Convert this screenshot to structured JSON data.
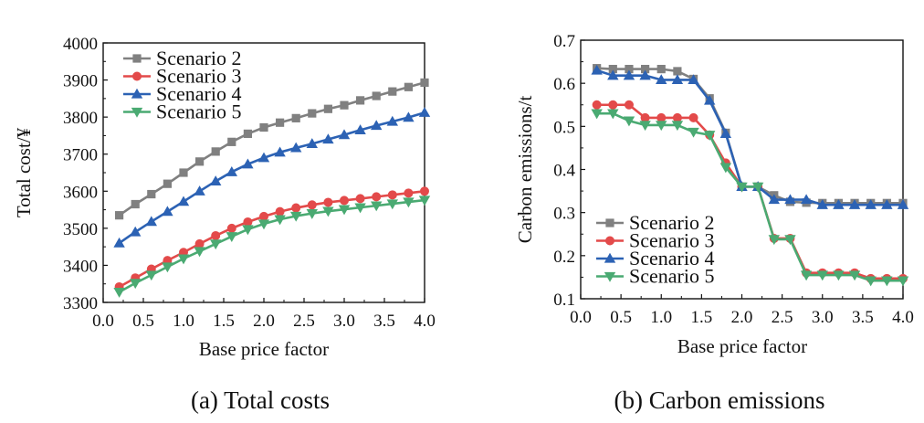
{
  "chart_data": [
    {
      "type": "line",
      "caption": "(a) Total costs",
      "xlabel": "Base price factor",
      "ylabel": "Total cost/¥",
      "xlim": [
        0.0,
        4.0
      ],
      "ylim": [
        3300,
        4000
      ],
      "x_ticks": [
        "0.0",
        "0.5",
        "1.0",
        "1.5",
        "2.0",
        "2.5",
        "3.0",
        "3.5",
        "4.0"
      ],
      "y_ticks": [
        "3300",
        "3400",
        "3500",
        "3600",
        "3700",
        "3800",
        "3900",
        "4000"
      ],
      "legend_position": "top-left",
      "x": [
        0.2,
        0.4,
        0.6,
        0.8,
        1.0,
        1.2,
        1.4,
        1.6,
        1.8,
        2.0,
        2.2,
        2.4,
        2.6,
        2.8,
        3.0,
        3.2,
        3.4,
        3.6,
        3.8,
        4.0
      ],
      "series": [
        {
          "name": "Scenario 2",
          "color": "#808080",
          "marker": "square",
          "values": [
            3535,
            3565,
            3592,
            3620,
            3650,
            3680,
            3707,
            3733,
            3755,
            3772,
            3785,
            3797,
            3810,
            3822,
            3832,
            3845,
            3857,
            3869,
            3881,
            3893
          ]
        },
        {
          "name": "Scenario 3",
          "color": "#e34a4a",
          "marker": "circle",
          "values": [
            3342,
            3366,
            3390,
            3413,
            3435,
            3458,
            3480,
            3500,
            3517,
            3532,
            3545,
            3555,
            3563,
            3570,
            3575,
            3580,
            3585,
            3590,
            3595,
            3600
          ]
        },
        {
          "name": "Scenario 4",
          "color": "#2c62b4",
          "marker": "triangle-up",
          "values": [
            3460,
            3490,
            3518,
            3545,
            3572,
            3600,
            3627,
            3652,
            3673,
            3690,
            3705,
            3717,
            3728,
            3740,
            3752,
            3765,
            3777,
            3788,
            3799,
            3812
          ]
        },
        {
          "name": "Scenario 5",
          "color": "#4aaa72",
          "marker": "triangle-down",
          "values": [
            3328,
            3352,
            3374,
            3396,
            3418,
            3438,
            3458,
            3478,
            3497,
            3512,
            3524,
            3533,
            3540,
            3546,
            3551,
            3556,
            3561,
            3566,
            3571,
            3576
          ]
        }
      ]
    },
    {
      "type": "line",
      "caption": "(b) Carbon emissions",
      "xlabel": "Base price factor",
      "ylabel": "Carbon emissions/t",
      "xlim": [
        0.0,
        4.0
      ],
      "ylim": [
        0.1,
        0.7
      ],
      "x_ticks": [
        "0.0",
        "0.5",
        "1.0",
        "1.5",
        "2.0",
        "2.5",
        "3.0",
        "3.5",
        "4.0"
      ],
      "y_ticks": [
        "0.1",
        "0.2",
        "0.3",
        "0.4",
        "0.5",
        "0.6",
        "0.7"
      ],
      "legend_position": "bottom-left",
      "x": [
        0.2,
        0.4,
        0.6,
        0.8,
        1.0,
        1.2,
        1.4,
        1.6,
        1.8,
        2.0,
        2.2,
        2.4,
        2.6,
        2.8,
        3.0,
        3.2,
        3.4,
        3.6,
        3.8,
        4.0
      ],
      "series": [
        {
          "name": "Scenario 2",
          "color": "#808080",
          "marker": "square",
          "values": [
            0.635,
            0.633,
            0.633,
            0.633,
            0.633,
            0.628,
            0.61,
            0.565,
            0.485,
            0.36,
            0.36,
            0.34,
            0.325,
            0.323,
            0.322,
            0.322,
            0.322,
            0.322,
            0.322,
            0.322
          ]
        },
        {
          "name": "Scenario 3",
          "color": "#e34a4a",
          "marker": "circle",
          "values": [
            0.55,
            0.55,
            0.55,
            0.52,
            0.52,
            0.52,
            0.52,
            0.48,
            0.415,
            0.36,
            0.36,
            0.24,
            0.24,
            0.16,
            0.16,
            0.16,
            0.16,
            0.147,
            0.147,
            0.147
          ]
        },
        {
          "name": "Scenario 4",
          "color": "#2c62b4",
          "marker": "triangle-up",
          "values": [
            0.63,
            0.618,
            0.618,
            0.618,
            0.608,
            0.608,
            0.608,
            0.56,
            0.483,
            0.36,
            0.36,
            0.33,
            0.33,
            0.33,
            0.318,
            0.318,
            0.318,
            0.318,
            0.318,
            0.318
          ]
        },
        {
          "name": "Scenario 5",
          "color": "#4aaa72",
          "marker": "triangle-down",
          "values": [
            0.53,
            0.53,
            0.513,
            0.503,
            0.503,
            0.503,
            0.487,
            0.48,
            0.405,
            0.36,
            0.36,
            0.238,
            0.238,
            0.155,
            0.155,
            0.155,
            0.155,
            0.142,
            0.142,
            0.142
          ]
        }
      ]
    }
  ]
}
